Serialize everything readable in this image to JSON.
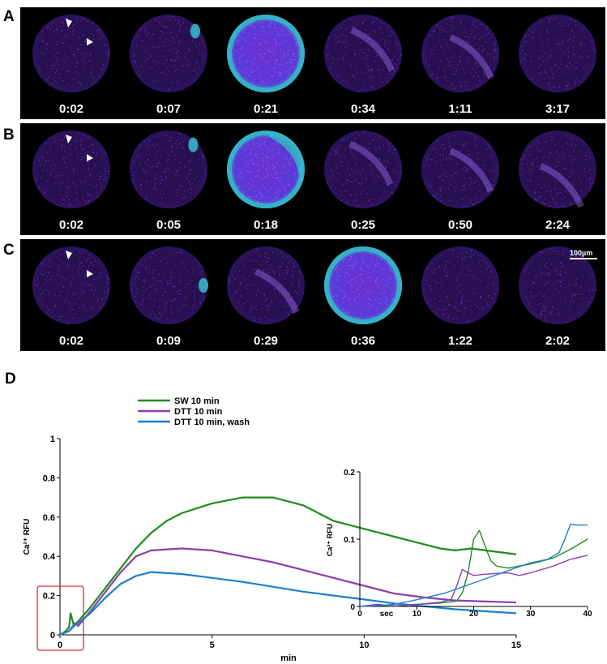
{
  "panels": [
    {
      "letter": "A",
      "times": [
        "0:02",
        "0:07",
        "0:21",
        "0:34",
        "1:11",
        "3:17"
      ]
    },
    {
      "letter": "B",
      "times": [
        "0:02",
        "0:05",
        "0:18",
        "0:25",
        "0:50",
        "2:24"
      ]
    },
    {
      "letter": "C",
      "times": [
        "0:02",
        "0:09",
        "0:29",
        "0:36",
        "1:22",
        "2:02"
      ]
    }
  ],
  "scale_bar_label": "100µm",
  "panel_d_letter": "D",
  "colors": {
    "sw": "#1e8c1e",
    "dtt": "#8a3fb0",
    "wash": "#1c7fcf",
    "highlight_box": "#e03030",
    "cell_base": "#5a22a8",
    "cell_wave": "#34b6c8"
  },
  "chart_data": [
    {
      "type": "line",
      "xlabel": "min",
      "ylabel": "Ca²⁺ RFU",
      "xlim": [
        0,
        15
      ],
      "ylim": [
        0,
        1
      ],
      "xticks": [
        0,
        5,
        10,
        15
      ],
      "yticks": [
        0,
        0.2,
        0.4,
        0.6,
        0.8,
        1
      ],
      "legend": "top-left",
      "series": [
        {
          "name": "SW 10 min",
          "x": [
            0,
            0.2,
            0.3,
            0.35,
            0.45,
            0.55,
            1,
            1.5,
            2,
            2.5,
            3,
            3.5,
            4,
            5,
            6,
            7,
            8,
            9,
            10,
            11,
            12,
            12.5,
            13,
            13.5,
            14,
            15
          ],
          "y": [
            0,
            0.02,
            0.04,
            0.11,
            0.05,
            0.06,
            0.14,
            0.24,
            0.34,
            0.44,
            0.52,
            0.58,
            0.62,
            0.67,
            0.7,
            0.7,
            0.66,
            0.58,
            0.54,
            0.5,
            0.46,
            0.44,
            0.43,
            0.44,
            0.43,
            0.41
          ]
        },
        {
          "name": "DTT 10 min",
          "x": [
            0,
            0.3,
            0.45,
            0.5,
            0.6,
            1,
            1.5,
            2,
            2.5,
            3,
            4,
            5,
            6,
            7,
            8,
            9,
            10,
            11,
            12,
            13,
            14,
            15
          ],
          "y": [
            0,
            0.02,
            0.05,
            0.06,
            0.045,
            0.12,
            0.22,
            0.32,
            0.4,
            0.43,
            0.44,
            0.43,
            0.4,
            0.37,
            0.33,
            0.29,
            0.25,
            0.21,
            0.19,
            0.175,
            0.17,
            0.165
          ]
        },
        {
          "name": "DTT 10 min, wash",
          "x": [
            0,
            0.3,
            0.5,
            0.6,
            1,
            1.5,
            2,
            2.5,
            3,
            4,
            5,
            6,
            7,
            8,
            9,
            10,
            11,
            12,
            13,
            14,
            15
          ],
          "y": [
            0,
            0.02,
            0.05,
            0.06,
            0.11,
            0.19,
            0.26,
            0.3,
            0.32,
            0.31,
            0.29,
            0.27,
            0.245,
            0.22,
            0.2,
            0.18,
            0.16,
            0.145,
            0.13,
            0.12,
            0.11
          ]
        }
      ]
    },
    {
      "type": "line",
      "inset": true,
      "xlabel": "sec",
      "ylabel": "Ca²⁺ RFU",
      "xlim": [
        0,
        40
      ],
      "ylim": [
        0,
        0.2
      ],
      "xticks": [
        0,
        10,
        20,
        30,
        40
      ],
      "yticks": [
        0,
        0.1,
        0.2
      ],
      "series": [
        {
          "name": "SW 10 min",
          "x": [
            0,
            3,
            6,
            10,
            14,
            17,
            18,
            19,
            20,
            21,
            22,
            23,
            24,
            26,
            30,
            34,
            37,
            40
          ],
          "y": [
            0,
            0.002,
            0.0,
            0.003,
            0.005,
            0.008,
            0.02,
            0.05,
            0.1,
            0.113,
            0.09,
            0.068,
            0.06,
            0.057,
            0.063,
            0.072,
            0.085,
            0.1
          ]
        },
        {
          "name": "DTT 10 min",
          "x": [
            0,
            3,
            6,
            10,
            14,
            16,
            17,
            18,
            19,
            20,
            22,
            26,
            28,
            30,
            34,
            37,
            40
          ],
          "y": [
            0,
            0.003,
            0.001,
            0.003,
            0.006,
            0.01,
            0.03,
            0.055,
            0.05,
            0.046,
            0.048,
            0.05,
            0.046,
            0.05,
            0.06,
            0.07,
            0.076
          ]
        },
        {
          "name": "DTT 10 min, wash",
          "x": [
            0,
            3,
            6,
            10,
            15,
            20,
            25,
            30,
            33,
            35,
            36,
            37,
            38,
            40
          ],
          "y": [
            0,
            0.001,
            0.003,
            0.01,
            0.02,
            0.035,
            0.05,
            0.065,
            0.07,
            0.08,
            0.1,
            0.122,
            0.121,
            0.121
          ]
        }
      ]
    }
  ]
}
